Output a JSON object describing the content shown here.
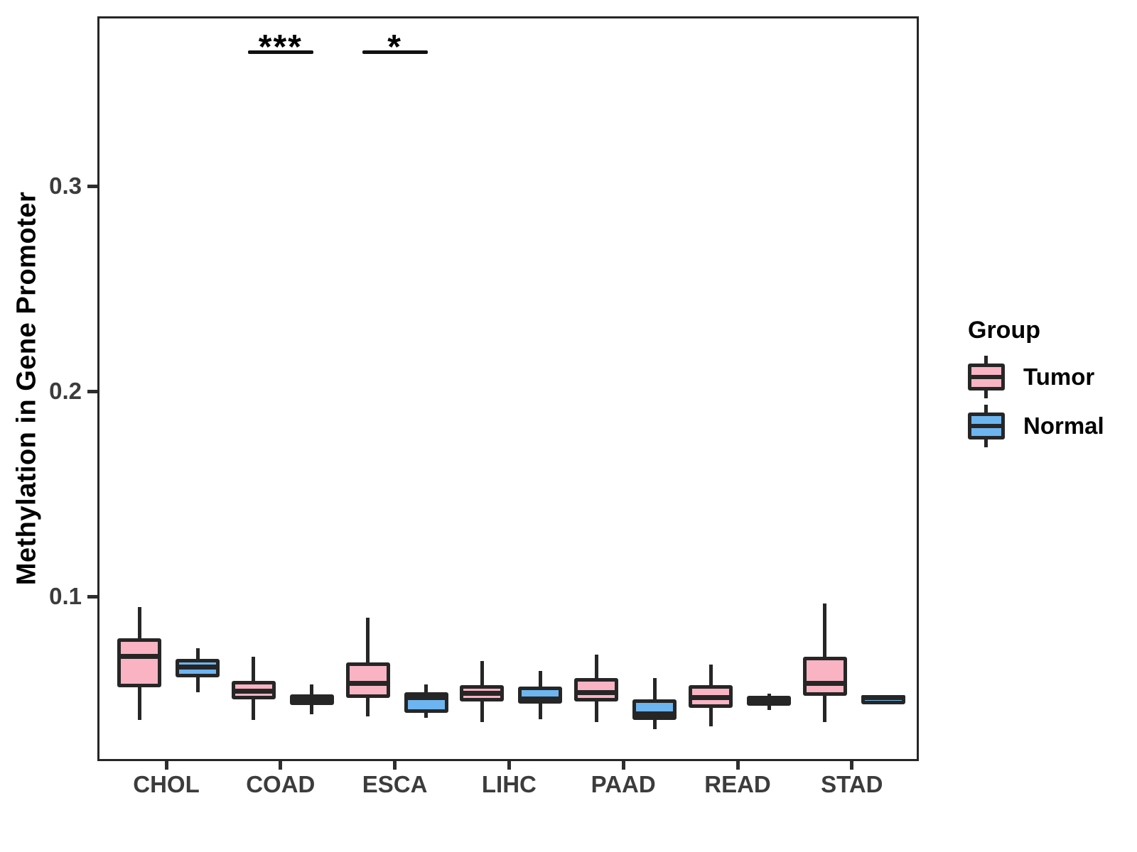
{
  "chart_data": {
    "type": "boxplot",
    "title": "",
    "xlabel": "",
    "ylabel": "Methylation in Gene Promoter",
    "categories": [
      "CHOL",
      "COAD",
      "ESCA",
      "LIHC",
      "PAAD",
      "READ",
      "STAD"
    ],
    "ytick_labels": [
      "0.1",
      "0.2",
      "0.3"
    ],
    "ytick_values": [
      0.1,
      0.2,
      0.3
    ],
    "ylim": [
      0.02,
      0.383
    ],
    "grid": false,
    "legend_title": "Group",
    "legend_position": "right",
    "box_border_color": "#262626",
    "series": [
      {
        "name": "Tumor",
        "color": "#F9B3C3",
        "boxes": [
          {
            "category": "CHOL",
            "low": 0.041,
            "q1": 0.057,
            "median": 0.072,
            "q3": 0.081,
            "high": 0.096
          },
          {
            "category": "COAD",
            "low": 0.041,
            "q1": 0.051,
            "median": 0.055,
            "q3": 0.06,
            "high": 0.072
          },
          {
            "category": "ESCA",
            "low": 0.043,
            "q1": 0.052,
            "median": 0.059,
            "q3": 0.069,
            "high": 0.091
          },
          {
            "category": "LIHC",
            "low": 0.04,
            "q1": 0.05,
            "median": 0.054,
            "q3": 0.058,
            "high": 0.07
          },
          {
            "category": "PAAD",
            "low": 0.04,
            "q1": 0.05,
            "median": 0.0545,
            "q3": 0.0615,
            "high": 0.073
          },
          {
            "category": "READ",
            "low": 0.038,
            "q1": 0.047,
            "median": 0.052,
            "q3": 0.058,
            "high": 0.068
          },
          {
            "category": "STAD",
            "low": 0.04,
            "q1": 0.053,
            "median": 0.059,
            "q3": 0.072,
            "high": 0.098
          }
        ]
      },
      {
        "name": "Normal",
        "color": "#6DB5F0",
        "boxes": [
          {
            "category": "CHOL",
            "low": 0.0545,
            "q1": 0.062,
            "median": 0.067,
            "q3": 0.071,
            "high": 0.076
          },
          {
            "category": "COAD",
            "low": 0.044,
            "q1": 0.0485,
            "median": 0.051,
            "q3": 0.0535,
            "high": 0.0585
          },
          {
            "category": "ESCA",
            "low": 0.042,
            "q1": 0.0445,
            "median": 0.052,
            "q3": 0.0545,
            "high": 0.0585
          },
          {
            "category": "LIHC",
            "low": 0.0415,
            "q1": 0.049,
            "median": 0.0513,
            "q3": 0.0575,
            "high": 0.065
          },
          {
            "category": "PAAD",
            "low": 0.0365,
            "q1": 0.041,
            "median": 0.044,
            "q3": 0.0512,
            "high": 0.0615
          },
          {
            "category": "READ",
            "low": 0.046,
            "q1": 0.048,
            "median": 0.0505,
            "q3": 0.053,
            "high": 0.054
          },
          {
            "category": "STAD",
            "low": 0.0515,
            "q1": 0.0515,
            "median": 0.052,
            "q3": 0.0525,
            "high": 0.0525
          }
        ]
      }
    ],
    "annotations": [
      {
        "category": "COAD",
        "label": "***"
      },
      {
        "category": "ESCA",
        "label": "*"
      }
    ]
  }
}
